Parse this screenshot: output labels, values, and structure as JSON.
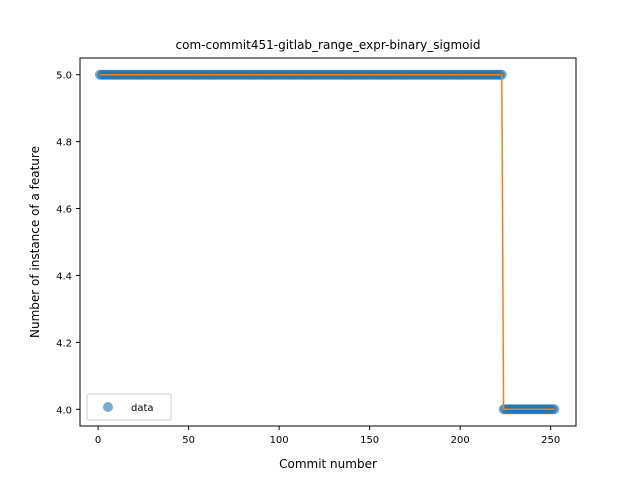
{
  "chart_data": {
    "type": "scatter",
    "title": "com-commit451-gitlab_range_expr-binary_sigmoid",
    "xlabel": "Commit number",
    "ylabel": "Number of instance of a feature",
    "xlim": [
      -10,
      264
    ],
    "ylim": [
      3.95,
      5.05
    ],
    "xticks": [
      0,
      50,
      100,
      150,
      200,
      250
    ],
    "yticks": [
      4.0,
      4.2,
      4.4,
      4.6,
      4.8,
      5.0
    ],
    "ytick_labels": [
      "4.0",
      "4.2",
      "4.4",
      "4.6",
      "4.8",
      "5.0"
    ],
    "grid": false,
    "legend_position": "lower-left",
    "series": [
      {
        "name": "data",
        "kind": "points",
        "color": "#1f77b4",
        "segments": [
          {
            "x_start": 1,
            "x_end": 223,
            "y": 5.0
          },
          {
            "x_start": 224,
            "x_end": 252,
            "y": 4.0
          }
        ]
      },
      {
        "kind": "line",
        "color": "#ff7f0e",
        "points": [
          [
            1,
            5.0
          ],
          [
            223,
            5.0
          ],
          [
            224,
            4.0
          ],
          [
            252,
            4.0
          ]
        ]
      }
    ]
  }
}
